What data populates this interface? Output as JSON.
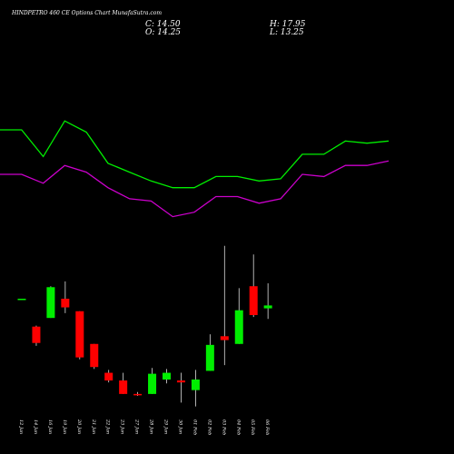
{
  "header": {
    "title": "HINDPETRO 460 CE Options Chart MunafaSutra.com",
    "close_label": "C: 14.50",
    "high_label": "H: 17.95",
    "open_label": "O: 14.25",
    "low_label": "L: 13.25"
  },
  "chart_data": {
    "type": "candlestick",
    "title": "HINDPETRO 460 CE Options Chart MunafaSutra.com",
    "x_axis": {
      "tick_labels": [
        "12 Jan",
        "14 Jan",
        "16 Jan",
        "19 Jan",
        "20 Jan",
        "21 Jan",
        "22 Jan",
        "23 Jan",
        "27 Jan",
        "28 Jan",
        "29 Jan",
        "30 Jan",
        "01 Feb",
        "02 Feb",
        "03 Feb",
        "04 Feb",
        "05 Feb",
        "06 Feb"
      ],
      "label_rotation": "vertical"
    },
    "up_color": "#00ee00",
    "down_color": "#ff0000",
    "candles": [
      {
        "date": "12 Jan",
        "open": 13.3,
        "high": 13.3,
        "low": 13.3,
        "close": 13.3
      },
      {
        "date": "14 Jan",
        "open": 10.4,
        "high": 10.5,
        "low": 8.4,
        "close": 8.7
      },
      {
        "date": "16 Jan",
        "open": 11.3,
        "high": 14.6,
        "low": 11.3,
        "close": 14.5
      },
      {
        "date": "19 Jan",
        "open": 13.3,
        "high": 15.1,
        "low": 11.8,
        "close": 12.4
      },
      {
        "date": "20 Jan",
        "open": 12.0,
        "high": 12.0,
        "low": 7.0,
        "close": 7.2
      },
      {
        "date": "21 Jan",
        "open": 8.6,
        "high": 8.6,
        "low": 6.0,
        "close": 6.2
      },
      {
        "date": "22 Jan",
        "open": 5.6,
        "high": 5.9,
        "low": 4.6,
        "close": 4.8
      },
      {
        "date": "23 Jan",
        "open": 4.8,
        "high": 5.6,
        "low": 3.4,
        "close": 3.4
      },
      {
        "date": "27 Jan",
        "open": 3.4,
        "high": 3.6,
        "low": 3.2,
        "close": 3.3
      },
      {
        "date": "28 Jan",
        "open": 3.4,
        "high": 6.1,
        "low": 3.4,
        "close": 5.5
      },
      {
        "date": "29 Jan",
        "open": 4.9,
        "high": 6.0,
        "low": 4.5,
        "close": 5.6
      },
      {
        "date": "30 Jan",
        "open": 4.8,
        "high": 5.6,
        "low": 2.5,
        "close": 4.6
      },
      {
        "date": "01 Feb",
        "open": 3.8,
        "high": 5.9,
        "low": 2.1,
        "close": 4.9
      },
      {
        "date": "02 Feb",
        "open": 5.8,
        "high": 9.6,
        "low": 5.8,
        "close": 8.5
      },
      {
        "date": "03 Feb",
        "open": 9.4,
        "high": 18.8,
        "low": 6.4,
        "close": 9.0
      },
      {
        "date": "04 Feb",
        "open": 8.6,
        "high": 14.4,
        "low": 8.6,
        "close": 12.1
      },
      {
        "date": "05 Feb",
        "open": 14.6,
        "high": 17.9,
        "low": 11.4,
        "close": 11.6
      },
      {
        "date": "06 Feb",
        "open": 12.3,
        "high": 14.9,
        "low": 11.2,
        "close": 12.6
      }
    ],
    "price_range": [
      1.5,
      20.0
    ],
    "overlay_series": [
      {
        "color": "#00ee00",
        "values": [
          60,
          60,
          48,
          64,
          59,
          45,
          41,
          37,
          34,
          34,
          39,
          39,
          37,
          38,
          49,
          49,
          55,
          54,
          55
        ]
      },
      {
        "color": "#cc00cc",
        "values": [
          40,
          40,
          36,
          44,
          41,
          34,
          29,
          28,
          21,
          23,
          30,
          30,
          27,
          29,
          40,
          39,
          44,
          44,
          46
        ]
      }
    ],
    "overlay_range": [
      0,
      100
    ],
    "grid": false
  }
}
